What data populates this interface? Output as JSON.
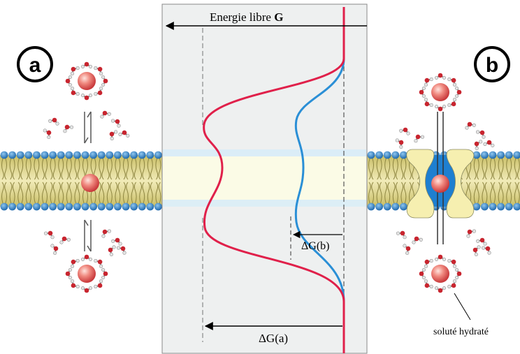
{
  "panel_a": {
    "label": "a"
  },
  "panel_b": {
    "label": "b"
  },
  "axis": {
    "label_prefix": "Energie libre ",
    "label_symbol": "G"
  },
  "delta_a": {
    "label": "ΔG(a)"
  },
  "delta_b": {
    "label": "ΔG(b)"
  },
  "solute": {
    "label": "soluté hydraté"
  },
  "colors": {
    "curve_a": "#e0204a",
    "curve_b": "#2a8fd6",
    "graph_bg": "#eef0f0",
    "lipid_head": "#2a7cc0",
    "lipid_tail": "#d8cf7a",
    "channel": "#1e7fd0",
    "channel_subunit": "#f6efb0",
    "ion": "#e86a6a"
  }
}
